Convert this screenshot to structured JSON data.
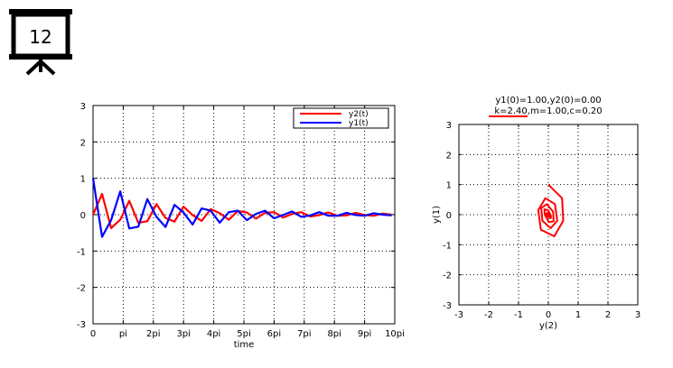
{
  "slide": {
    "number": "12"
  },
  "chart_data": [
    {
      "type": "line",
      "title": "",
      "xlabel": "time",
      "ylabel": "",
      "xlim": [
        0,
        31.4159
      ],
      "ylim": [
        -3,
        3
      ],
      "x_tick_labels": [
        "0",
        "pi",
        "2pi",
        "3pi",
        "4pi",
        "5pi",
        "6pi",
        "7pi",
        "8pi",
        "9pi",
        "10pi"
      ],
      "y_tick_labels": [
        "-3",
        "-2",
        "-1",
        "0",
        "1",
        "2",
        "3"
      ],
      "y_ticks": [
        -3,
        -2,
        -1,
        0,
        1,
        2,
        3
      ],
      "grid": true,
      "legend_position": "top-right",
      "series": [
        {
          "name": "y2(t)",
          "color": "#ff0000",
          "x": [
            0,
            0.94,
            1.88,
            2.83,
            3.77,
            4.71,
            5.65,
            6.6,
            7.54,
            8.48,
            9.42,
            10.37,
            11.31,
            12.25,
            13.19,
            14.14,
            15.08,
            16.02,
            16.96,
            17.91,
            18.85,
            19.79,
            20.73,
            21.68,
            22.62,
            23.56,
            24.5,
            25.45,
            26.39,
            27.33,
            28.27,
            29.22,
            30.16,
            31.1
          ],
          "y": [
            0,
            0.57,
            -0.37,
            -0.14,
            0.38,
            -0.22,
            -0.18,
            0.29,
            -0.09,
            -0.19,
            0.22,
            -0.01,
            -0.17,
            0.15,
            0.04,
            -0.14,
            0.1,
            0.06,
            -0.11,
            0.05,
            0.07,
            -0.08,
            0.02,
            0.07,
            -0.05,
            -0.01,
            0.06,
            -0.03,
            -0.02,
            0.05,
            -0.01,
            -0.03,
            0.03,
            0.0
          ]
        },
        {
          "name": "y1(t)",
          "color": "#0000ff",
          "x": [
            0,
            0.94,
            1.88,
            2.83,
            3.77,
            4.71,
            5.65,
            6.6,
            7.54,
            8.48,
            9.42,
            10.37,
            11.31,
            12.25,
            13.19,
            14.14,
            15.08,
            16.02,
            16.96,
            17.91,
            18.85,
            19.79,
            20.73,
            21.68,
            22.62,
            23.56,
            24.5,
            25.45,
            26.39,
            27.33,
            28.27,
            29.22,
            30.16,
            31.1
          ],
          "y": [
            1.0,
            -0.61,
            -0.15,
            0.64,
            -0.38,
            -0.33,
            0.43,
            -0.06,
            -0.34,
            0.27,
            0.06,
            -0.27,
            0.17,
            0.11,
            -0.22,
            0.07,
            0.11,
            -0.15,
            0.02,
            0.11,
            -0.1,
            -0.01,
            0.09,
            -0.06,
            -0.02,
            0.07,
            -0.03,
            -0.03,
            0.05,
            -0.01,
            -0.03,
            0.04,
            0.0,
            -0.02
          ]
        }
      ]
    },
    {
      "type": "line",
      "title": "y1(0)=1.00,y2(0)=0.00",
      "subtitle": "k=2.40,m=1.00,c=0.20",
      "xlabel": "y(2)",
      "ylabel": "y(1)",
      "xlim": [
        -3,
        3
      ],
      "ylim": [
        -3,
        3
      ],
      "x_ticks": [
        -3,
        -2,
        -1,
        0,
        1,
        2,
        3
      ],
      "y_ticks": [
        -3,
        -2,
        -1,
        0,
        1,
        2,
        3
      ],
      "x_tick_labels": [
        "-3",
        "-2",
        "-1",
        "0",
        "1",
        "2",
        "3"
      ],
      "y_tick_labels": [
        "-3",
        "-2",
        "-1",
        "0",
        "1",
        "2",
        "3"
      ],
      "grid": true,
      "series": [
        {
          "color": "#ff0000",
          "x": [
            0.0,
            0.46,
            0.5,
            0.2,
            -0.25,
            -0.34,
            -0.1,
            0.22,
            0.3,
            0.08,
            -0.2,
            -0.24,
            -0.05,
            0.16,
            0.18,
            0.02,
            -0.12,
            -0.13,
            0.0,
            0.09,
            0.08,
            -0.02,
            -0.06,
            -0.04,
            0.0
          ],
          "y": [
            1.0,
            0.55,
            -0.2,
            -0.72,
            -0.5,
            0.15,
            0.55,
            0.35,
            -0.2,
            -0.45,
            -0.2,
            0.22,
            0.35,
            0.1,
            -0.22,
            -0.25,
            0.0,
            0.18,
            0.14,
            -0.05,
            -0.12,
            -0.06,
            0.05,
            0.04,
            0.0
          ]
        }
      ]
    }
  ]
}
